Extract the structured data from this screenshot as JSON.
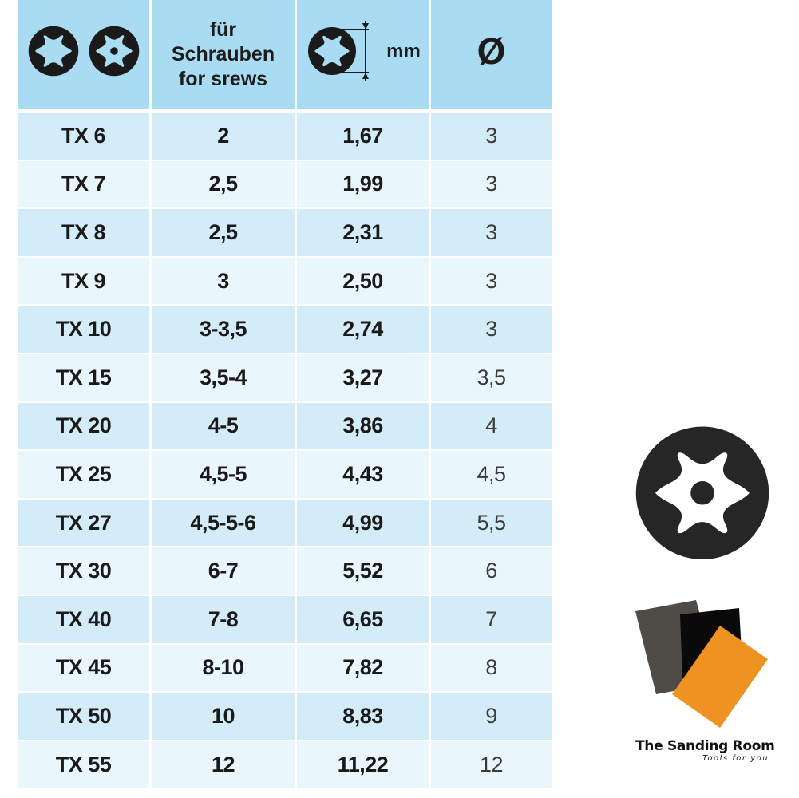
{
  "table": {
    "headers": {
      "col_bit_icons": [
        "torx-outline-icon",
        "torx-pin-icon"
      ],
      "col_screws_line1": "für",
      "col_screws_line2": "Schrauben",
      "col_screws_line3": "for srews",
      "col_size_icon": "torx-dimension-icon",
      "col_size_unit": "mm",
      "col_diameter_symbol": "Ø"
    },
    "rows": [
      {
        "size": "TX 6",
        "screws": "2",
        "mm": "1,67",
        "diameter": "3"
      },
      {
        "size": "TX 7",
        "screws": "2,5",
        "mm": "1,99",
        "diameter": "3"
      },
      {
        "size": "TX 8",
        "screws": "2,5",
        "mm": "2,31",
        "diameter": "3"
      },
      {
        "size": "TX 9",
        "screws": "3",
        "mm": "2,50",
        "diameter": "3"
      },
      {
        "size": "TX 10",
        "screws": "3-3,5",
        "mm": "2,74",
        "diameter": "3"
      },
      {
        "size": "TX 15",
        "screws": "3,5-4",
        "mm": "3,27",
        "diameter": "3,5"
      },
      {
        "size": "TX 20",
        "screws": "4-5",
        "mm": "3,86",
        "diameter": "4"
      },
      {
        "size": "TX 25",
        "screws": "4,5-5",
        "mm": "4,43",
        "diameter": "4,5"
      },
      {
        "size": "TX 27",
        "screws": "4,5-5-6",
        "mm": "4,99",
        "diameter": "5,5"
      },
      {
        "size": "TX 30",
        "screws": "6-7",
        "mm": "5,52",
        "diameter": "6"
      },
      {
        "size": "TX 40",
        "screws": "7-8",
        "mm": "6,65",
        "diameter": "7"
      },
      {
        "size": "TX 45",
        "screws": "8-10",
        "mm": "7,82",
        "diameter": "8"
      },
      {
        "size": "TX 50",
        "screws": "10",
        "mm": "8,83",
        "diameter": "9"
      },
      {
        "size": "TX 55",
        "screws": "12",
        "mm": "11,22",
        "diameter": "12"
      }
    ],
    "colors": {
      "header_bg": "#a9dcf3",
      "row_odd_bg": "#d4ecf8",
      "row_even_bg": "#e9f6fc"
    }
  },
  "illustration": {
    "icon": "torx-tamper-socket-icon",
    "color": "#262626"
  },
  "logo": {
    "name": "The Sanding Room",
    "tagline": "Tools for you",
    "sheet_colors": [
      "#4f4c48",
      "#0a0a0a",
      "#ee9221"
    ]
  }
}
